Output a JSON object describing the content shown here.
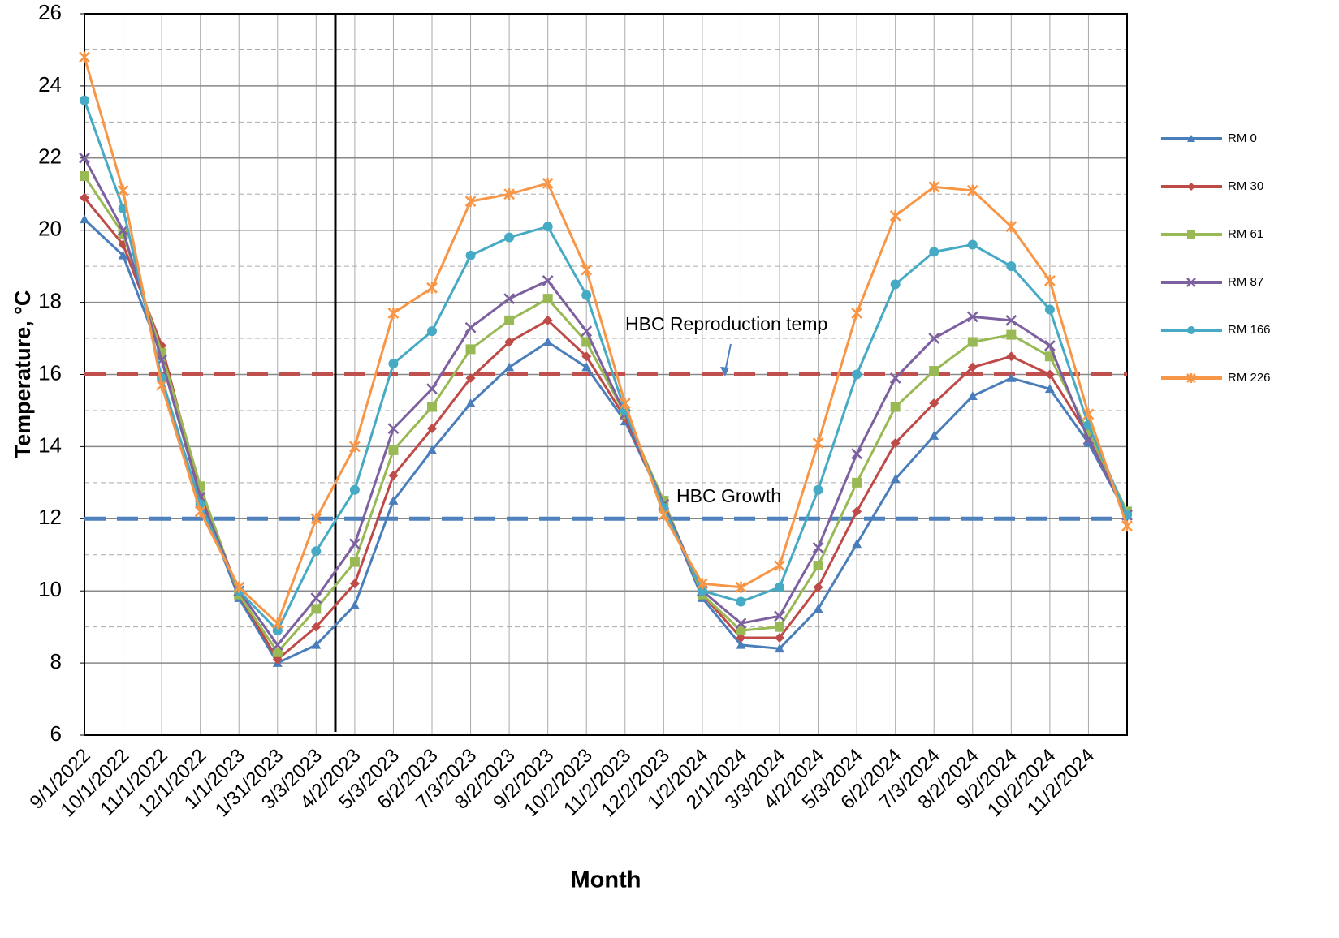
{
  "chart_data": {
    "type": "line",
    "xlabel": "Month",
    "ylabel": "Temperature, °C",
    "categories": [
      "9/1/2022",
      "10/1/2022",
      "11/1/2022",
      "12/1/2022",
      "1/1/2023",
      "1/31/2023",
      "3/3/2023",
      "4/2/2023",
      "5/3/2023",
      "6/2/2023",
      "7/3/2023",
      "8/2/2023",
      "9/2/2023",
      "10/2/2023",
      "11/2/2023",
      "12/2/2023",
      "1/2/2024",
      "2/1/2024",
      "3/3/2024",
      "4/2/2024",
      "5/3/2024",
      "6/2/2024",
      "7/3/2024",
      "8/2/2024",
      "9/2/2024",
      "10/2/2024",
      "11/2/2024",
      null
    ],
    "series": [
      {
        "name": "RM 0",
        "color": "#4a7ebb",
        "marker": "triangle",
        "values": [
          20.3,
          19.3,
          16.5,
          12.6,
          9.8,
          8.0,
          8.5,
          9.6,
          12.5,
          13.9,
          15.2,
          16.2,
          16.9,
          16.2,
          14.7,
          12.4,
          9.8,
          8.5,
          8.4,
          9.5,
          11.3,
          13.1,
          14.3,
          15.4,
          15.9,
          15.6,
          14.1,
          12.1
        ]
      },
      {
        "name": "RM 30",
        "color": "#be4b48",
        "marker": "diamond",
        "values": [
          20.9,
          19.6,
          16.8,
          12.7,
          9.9,
          8.1,
          9.0,
          10.2,
          13.2,
          14.5,
          15.9,
          16.9,
          17.5,
          16.5,
          14.8,
          12.4,
          9.9,
          8.7,
          8.7,
          10.1,
          12.2,
          14.1,
          15.2,
          16.2,
          16.5,
          16.0,
          14.3,
          12.1
        ]
      },
      {
        "name": "RM 61",
        "color": "#98b954",
        "marker": "square",
        "values": [
          21.5,
          19.9,
          16.6,
          12.9,
          9.9,
          8.3,
          9.5,
          10.8,
          13.9,
          15.1,
          16.7,
          17.5,
          18.1,
          16.9,
          14.9,
          12.5,
          9.9,
          8.9,
          9.0,
          10.7,
          13.0,
          15.1,
          16.1,
          16.9,
          17.1,
          16.5,
          14.4,
          12.2
        ]
      },
      {
        "name": "RM 87",
        "color": "#7d60a0",
        "marker": "x",
        "values": [
          22.0,
          20.0,
          16.4,
          12.6,
          10.0,
          8.5,
          9.8,
          11.3,
          14.5,
          15.6,
          17.3,
          18.1,
          18.6,
          17.2,
          14.9,
          12.4,
          10.0,
          9.1,
          9.3,
          11.2,
          13.8,
          15.9,
          17.0,
          17.6,
          17.5,
          16.8,
          14.2,
          12.1
        ]
      },
      {
        "name": "RM 166",
        "color": "#46aac5",
        "marker": "circle",
        "values": [
          23.6,
          20.6,
          15.9,
          12.4,
          10.0,
          8.9,
          11.1,
          12.8,
          16.3,
          17.2,
          19.3,
          19.8,
          20.1,
          18.2,
          15.0,
          12.3,
          10.0,
          9.7,
          10.1,
          12.8,
          16.0,
          18.5,
          19.4,
          19.6,
          19.0,
          17.8,
          14.6,
          12.1
        ]
      },
      {
        "name": "RM 226",
        "color": "#f79646",
        "marker": "star",
        "values": [
          24.8,
          21.1,
          15.7,
          12.2,
          10.1,
          9.1,
          12.0,
          14.0,
          17.7,
          18.4,
          20.8,
          21.0,
          21.3,
          18.9,
          15.2,
          12.1,
          10.2,
          10.1,
          10.7,
          14.1,
          17.7,
          20.4,
          21.2,
          21.1,
          20.1,
          18.6,
          14.9,
          11.8
        ]
      }
    ],
    "reference_lines": [
      {
        "value": 16,
        "label": "HBC Reproduction temp",
        "color": "#c0504d"
      },
      {
        "value": 12,
        "label": "HBC Growth",
        "color": "#4f81bd"
      }
    ],
    "ylim": [
      6,
      26
    ],
    "yticks": [
      6,
      8,
      10,
      12,
      14,
      16,
      18,
      20,
      22,
      24,
      26
    ],
    "minor_yticks": [
      7,
      9,
      11,
      13,
      15,
      17,
      19,
      21,
      23,
      25
    ],
    "grid": true,
    "legend": "right"
  }
}
